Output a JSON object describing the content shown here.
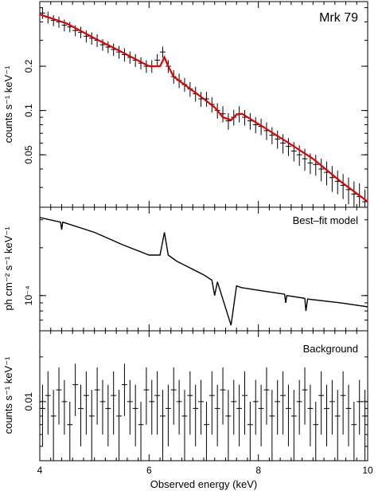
{
  "chart_data": [
    {
      "type": "scatter",
      "panel": "top",
      "label": "Mrk 79",
      "ylabel": "counts s⁻¹ keV⁻¹",
      "yscale": "log",
      "ylim": [
        0.022,
        0.55
      ],
      "xlim": [
        4,
        10
      ],
      "yticks": [
        0.05,
        0.1,
        0.2
      ],
      "ytick_labels": [
        "0.05",
        "0.1",
        "0.2"
      ],
      "series": [
        {
          "kind": "data_with_errors",
          "x": [
            4.05,
            4.15,
            4.25,
            4.35,
            4.45,
            4.55,
            4.65,
            4.75,
            4.85,
            4.95,
            5.05,
            5.15,
            5.25,
            5.35,
            5.45,
            5.55,
            5.65,
            5.75,
            5.85,
            5.95,
            6.05,
            6.15,
            6.25,
            6.35,
            6.45,
            6.55,
            6.65,
            6.75,
            6.85,
            6.95,
            7.05,
            7.15,
            7.25,
            7.35,
            7.45,
            7.55,
            7.65,
            7.75,
            7.85,
            7.95,
            8.05,
            8.15,
            8.25,
            8.35,
            8.45,
            8.55,
            8.65,
            8.75,
            8.85,
            8.95,
            9.05,
            9.15,
            9.25,
            9.35,
            9.45,
            9.55,
            9.65,
            9.75,
            9.85,
            9.95
          ],
          "y": [
            0.46,
            0.43,
            0.41,
            0.4,
            0.38,
            0.37,
            0.35,
            0.34,
            0.32,
            0.31,
            0.3,
            0.28,
            0.27,
            0.26,
            0.25,
            0.24,
            0.23,
            0.22,
            0.21,
            0.2,
            0.2,
            0.22,
            0.25,
            0.2,
            0.17,
            0.16,
            0.15,
            0.14,
            0.13,
            0.12,
            0.12,
            0.11,
            0.1,
            0.095,
            0.085,
            0.09,
            0.095,
            0.09,
            0.085,
            0.08,
            0.078,
            0.073,
            0.068,
            0.064,
            0.06,
            0.057,
            0.053,
            0.05,
            0.047,
            0.044,
            0.043,
            0.04,
            0.038,
            0.035,
            0.033,
            0.031,
            0.029,
            0.027,
            0.026,
            0.024
          ],
          "yerr": [
            0.04,
            0.04,
            0.035,
            0.035,
            0.035,
            0.03,
            0.03,
            0.03,
            0.03,
            0.03,
            0.03,
            0.025,
            0.025,
            0.025,
            0.025,
            0.025,
            0.022,
            0.022,
            0.02,
            0.02,
            0.02,
            0.022,
            0.022,
            0.02,
            0.018,
            0.018,
            0.016,
            0.016,
            0.015,
            0.014,
            0.014,
            0.013,
            0.012,
            0.012,
            0.011,
            0.011,
            0.012,
            0.011,
            0.011,
            0.01,
            0.01,
            0.01,
            0.009,
            0.009,
            0.009,
            0.008,
            0.008,
            0.008,
            0.008,
            0.007,
            0.007,
            0.007,
            0.007,
            0.007,
            0.006,
            0.006,
            0.006,
            0.006,
            0.006,
            0.005
          ]
        },
        {
          "kind": "model_curve",
          "x": [
            4.0,
            4.5,
            5.0,
            5.5,
            6.0,
            6.2,
            6.28,
            6.35,
            6.45,
            6.7,
            7.0,
            7.2,
            7.35,
            7.5,
            7.6,
            7.7,
            8.0,
            8.5,
            9.0,
            9.5,
            10.0
          ],
          "y": [
            0.45,
            0.39,
            0.31,
            0.25,
            0.2,
            0.2,
            0.23,
            0.2,
            0.17,
            0.145,
            0.12,
            0.105,
            0.09,
            0.086,
            0.094,
            0.095,
            0.081,
            0.062,
            0.047,
            0.033,
            0.024
          ]
        }
      ]
    },
    {
      "type": "line",
      "panel": "middle",
      "label": "Best–fit model",
      "ylabel": "ph cm⁻² s⁻¹ keV⁻¹",
      "yscale": "log",
      "ylim": [
        6e-05,
        0.00036
      ],
      "xlim": [
        4,
        10
      ],
      "yticks": [
        0.0001
      ],
      "ytick_labels": [
        "10⁻⁴"
      ],
      "x": [
        4.0,
        4.38,
        4.4,
        4.42,
        5.0,
        5.5,
        6.0,
        6.2,
        6.28,
        6.35,
        6.5,
        7.0,
        7.15,
        7.2,
        7.25,
        7.5,
        7.6,
        7.7,
        8.0,
        8.48,
        8.5,
        8.52,
        8.85,
        8.87,
        8.9,
        9.5,
        10.0
      ],
      "y": [
        0.00031,
        0.00029,
        0.00026,
        0.00029,
        0.00025,
        0.00021,
        0.00018,
        0.00018,
        0.00025,
        0.00018,
        0.000165,
        0.000135,
        0.000125,
        0.0001,
        0.000122,
        6.5e-05,
        0.000115,
        0.000112,
        0.000108,
        0.000102,
        9e-05,
        0.0001,
        9.6e-05,
        8e-05,
        9.5e-05,
        9e-05,
        8.5e-05
      ]
    },
    {
      "type": "scatter",
      "panel": "bottom",
      "label": "Background",
      "ylabel": "counts s⁻¹ keV⁻¹",
      "yscale": "log",
      "ylim": [
        0.004,
        0.03
      ],
      "xlim": [
        4,
        10
      ],
      "yticks": [
        0.01
      ],
      "ytick_labels": [
        "0.01"
      ],
      "xlabel": "Observed energy (keV)",
      "xticks": [
        4,
        6,
        8,
        10
      ],
      "xtick_labels": [
        "4",
        "6",
        "8",
        "10"
      ],
      "x": [
        4.05,
        4.15,
        4.25,
        4.35,
        4.45,
        4.55,
        4.65,
        4.75,
        4.85,
        4.95,
        5.05,
        5.15,
        5.25,
        5.35,
        5.45,
        5.55,
        5.65,
        5.75,
        5.85,
        5.95,
        6.05,
        6.15,
        6.25,
        6.35,
        6.45,
        6.55,
        6.65,
        6.75,
        6.85,
        6.95,
        7.05,
        7.15,
        7.25,
        7.35,
        7.45,
        7.55,
        7.65,
        7.75,
        7.85,
        7.95,
        8.05,
        8.15,
        8.25,
        8.35,
        8.45,
        8.55,
        8.65,
        8.75,
        8.85,
        8.95,
        9.05,
        9.15,
        9.25,
        9.35,
        9.45,
        9.55,
        9.65,
        9.75,
        9.85,
        9.95
      ],
      "y": [
        0.009,
        0.011,
        0.008,
        0.012,
        0.01,
        0.007,
        0.013,
        0.009,
        0.011,
        0.008,
        0.012,
        0.01,
        0.009,
        0.011,
        0.008,
        0.013,
        0.01,
        0.009,
        0.007,
        0.012,
        0.01,
        0.011,
        0.008,
        0.009,
        0.012,
        0.01,
        0.008,
        0.011,
        0.009,
        0.01,
        0.007,
        0.011,
        0.009,
        0.012,
        0.008,
        0.01,
        0.009,
        0.011,
        0.007,
        0.01,
        0.009,
        0.012,
        0.008,
        0.01,
        0.011,
        0.009,
        0.008,
        0.01,
        0.012,
        0.009,
        0.007,
        0.011,
        0.009,
        0.01,
        0.008,
        0.011,
        0.009,
        0.007,
        0.01,
        0.008
      ],
      "yerr": [
        0.004,
        0.005,
        0.004,
        0.005,
        0.004,
        0.003,
        0.005,
        0.004,
        0.005,
        0.004,
        0.005,
        0.004,
        0.004,
        0.005,
        0.004,
        0.005,
        0.004,
        0.004,
        0.003,
        0.005,
        0.004,
        0.005,
        0.004,
        0.004,
        0.005,
        0.004,
        0.004,
        0.005,
        0.004,
        0.004,
        0.003,
        0.005,
        0.004,
        0.005,
        0.004,
        0.004,
        0.004,
        0.005,
        0.003,
        0.004,
        0.004,
        0.005,
        0.004,
        0.004,
        0.005,
        0.004,
        0.004,
        0.004,
        0.005,
        0.004,
        0.003,
        0.005,
        0.004,
        0.004,
        0.004,
        0.005,
        0.004,
        0.003,
        0.004,
        0.004
      ]
    }
  ]
}
